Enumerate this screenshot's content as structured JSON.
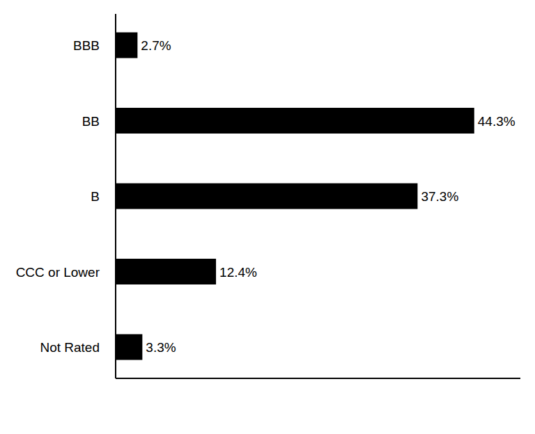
{
  "chart_data": {
    "type": "bar",
    "orientation": "horizontal",
    "categories": [
      "BBB",
      "BB",
      "B",
      "CCC or Lower",
      "Not Rated"
    ],
    "values": [
      2.7,
      44.3,
      37.3,
      12.4,
      3.3
    ],
    "value_labels": [
      "2.7%",
      "44.3%",
      "37.3%",
      "12.4%",
      "3.3%"
    ],
    "color": "#000000",
    "xlim": [
      0,
      50
    ],
    "data_labels": true,
    "tick_labels": "y",
    "grid": false
  }
}
